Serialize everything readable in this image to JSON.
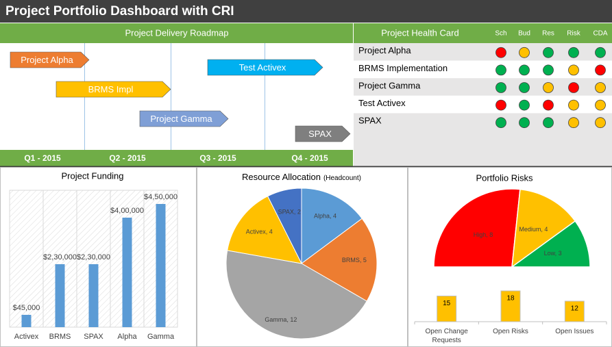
{
  "title": "Project Portfolio Dashboard with CRI",
  "roadmap": {
    "title": "Project Delivery Roadmap",
    "quarters": [
      "Q1 - 2015",
      "Q2 - 2015",
      "Q3 - 2015",
      "Q4 - 2015"
    ],
    "tasks": [
      {
        "label": "Project Alpha",
        "color": "#ed7d31"
      },
      {
        "label": "Test Activex",
        "color": "#00b0f0"
      },
      {
        "label": "BRMS Impl",
        "color": "#ffc000"
      },
      {
        "label": "Project Gamma",
        "color": "#7f9fd6"
      },
      {
        "label": "SPAX",
        "color": "#7f7f7f"
      }
    ]
  },
  "health": {
    "title": "Project Health Card",
    "columns": [
      "Sch",
      "Bud",
      "Res",
      "Risk",
      "CDA"
    ],
    "rows": [
      {
        "project": "Project Alpha",
        "status": [
          "#ff0000",
          "#ffc000",
          "#00b050",
          "#00b050",
          "#00b050"
        ]
      },
      {
        "project": "BRMS Implementation",
        "status": [
          "#00b050",
          "#00b050",
          "#00b050",
          "#ffc000",
          "#ff0000"
        ]
      },
      {
        "project": "Project Gamma",
        "status": [
          "#00b050",
          "#00b050",
          "#ffc000",
          "#ff0000",
          "#ffc000"
        ]
      },
      {
        "project": "Test Activex",
        "status": [
          "#ff0000",
          "#00b050",
          "#ff0000",
          "#ffc000",
          "#ffc000"
        ]
      },
      {
        "project": "SPAX",
        "status": [
          "#00b050",
          "#00b050",
          "#00b050",
          "#ffc000",
          "#ffc000"
        ]
      }
    ]
  },
  "chart_data": [
    {
      "type": "bar",
      "title": "Project Funding",
      "categories": [
        "Activex",
        "BRMS",
        "SPAX",
        "Alpha",
        "Gamma"
      ],
      "values": [
        45000,
        230000,
        230000,
        400000,
        450000
      ],
      "value_labels": [
        "$45,000",
        "$2,30,000",
        "$2,30,000",
        "$4,00,000",
        "$4,50,000"
      ],
      "color": "#5b9bd5",
      "ylim": [
        0,
        500000
      ]
    },
    {
      "type": "pie",
      "title": "Resource Allocation",
      "subtitle": "(Headcount)",
      "categories": [
        "Alpha",
        "BRMS",
        "Gamma",
        "Activex",
        "SPAX"
      ],
      "values": [
        4,
        5,
        12,
        4,
        2
      ],
      "value_labels": [
        "Alpha, 4",
        "BRMS, 5",
        "Gamma, 12",
        "Activex, 4",
        "SPAX, 2"
      ],
      "colors": [
        "#5b9bd5",
        "#ed7d31",
        "#a5a5a5",
        "#ffc000",
        "#4472c4"
      ]
    },
    {
      "type": "gauge",
      "title": "Portfolio Risks",
      "categories": [
        "High",
        "Medium",
        "Low"
      ],
      "values": [
        8,
        4,
        3
      ],
      "value_labels": [
        "High, 8",
        "Medium, 4",
        "Low, 3"
      ],
      "colors": [
        "#ff0000",
        "#ffc000",
        "#00b050"
      ]
    },
    {
      "type": "bar",
      "categories": [
        "Open Change Requests",
        "Open Risks",
        "Open Issues"
      ],
      "values": [
        15,
        18,
        12
      ],
      "color": "#ffc000",
      "ylim": [
        0,
        20
      ]
    }
  ]
}
